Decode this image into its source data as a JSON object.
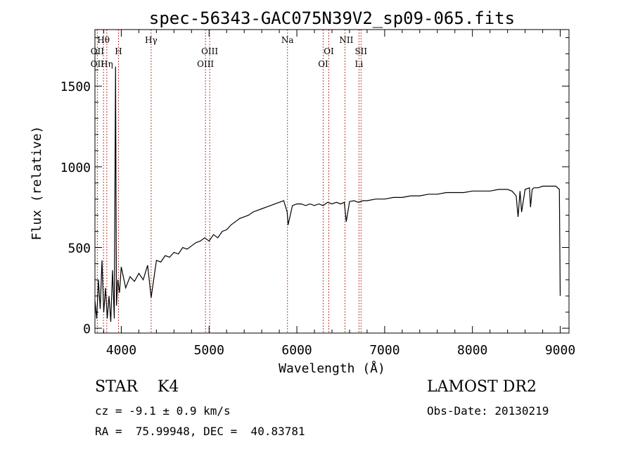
{
  "chart_data": {
    "type": "line",
    "title": "spec-56343-GAC075N39V2_sp09-065.fits",
    "xlabel": "Wavelength (Å)",
    "ylabel": "Flux (relative)",
    "xlim": [
      3700,
      9100
    ],
    "ylim": [
      -30,
      1850
    ],
    "xticks": [
      4000,
      5000,
      6000,
      7000,
      8000,
      9000
    ],
    "yticks": [
      0,
      500,
      1000,
      1500
    ],
    "grid": false,
    "series": [
      {
        "x": [
          3700,
          3720,
          3740,
          3760,
          3780,
          3800,
          3820,
          3840,
          3860,
          3880,
          3900,
          3920,
          3935,
          3945,
          3960,
          3980,
          4000,
          4050,
          4100,
          4150,
          4200,
          4250,
          4300,
          4340,
          4400,
          4450,
          4500,
          4550,
          4600,
          4650,
          4700,
          4750,
          4800,
          4850,
          4900,
          4950,
          5000,
          5050,
          5100,
          5150,
          5200,
          5250,
          5300,
          5350,
          5400,
          5450,
          5500,
          5550,
          5600,
          5650,
          5700,
          5750,
          5800,
          5850,
          5890,
          5900,
          5950,
          6000,
          6050,
          6100,
          6150,
          6200,
          6250,
          6300,
          6350,
          6400,
          6450,
          6500,
          6540,
          6563,
          6600,
          6650,
          6700,
          6750,
          6800,
          6900,
          7000,
          7100,
          7200,
          7300,
          7400,
          7500,
          7600,
          7700,
          7800,
          7900,
          8000,
          8100,
          8200,
          8300,
          8400,
          8450,
          8498,
          8520,
          8542,
          8560,
          8600,
          8650,
          8662,
          8680,
          8700,
          8750,
          8800,
          8850,
          8900,
          8950,
          8990,
          9000
        ],
        "values": [
          170,
          60,
          300,
          120,
          420,
          100,
          250,
          60,
          200,
          40,
          360,
          60,
          1620,
          140,
          300,
          220,
          380,
          250,
          320,
          290,
          340,
          300,
          390,
          190,
          420,
          410,
          450,
          440,
          470,
          460,
          500,
          490,
          510,
          530,
          540,
          560,
          540,
          580,
          560,
          600,
          610,
          640,
          660,
          680,
          690,
          700,
          720,
          730,
          740,
          750,
          760,
          770,
          780,
          790,
          720,
          640,
          760,
          770,
          770,
          760,
          770,
          760,
          770,
          760,
          780,
          770,
          780,
          770,
          780,
          660,
          785,
          790,
          780,
          790,
          790,
          800,
          800,
          810,
          810,
          820,
          820,
          830,
          830,
          840,
          840,
          840,
          850,
          850,
          850,
          860,
          860,
          850,
          820,
          690,
          850,
          720,
          860,
          870,
          750,
          860,
          870,
          870,
          880,
          880,
          880,
          880,
          860,
          200
        ]
      }
    ],
    "annotations": [
      {
        "label": "Hθ",
        "x": 3797,
        "row": 1
      },
      {
        "label": "OII",
        "x": 3727,
        "row": 2
      },
      {
        "label": "H",
        "x": 3968,
        "row": 2
      },
      {
        "label": "OII",
        "x": 3727,
        "row": 3
      },
      {
        "label": "Hη",
        "x": 3835,
        "row": 3
      },
      {
        "label": "Hγ",
        "x": 4340,
        "row": 1
      },
      {
        "label": "OIII",
        "x": 5007,
        "row": 2
      },
      {
        "label": "OIII",
        "x": 4959,
        "row": 3
      },
      {
        "label": "Na",
        "x": 5893,
        "row": 1
      },
      {
        "label": "OI",
        "x": 6364,
        "row": 2
      },
      {
        "label": "OI",
        "x": 6300,
        "row": 3
      },
      {
        "label": "NII",
        "x": 6563,
        "row": 1
      },
      {
        "label": "SII",
        "x": 6731,
        "row": 2
      },
      {
        "label": "Li",
        "x": 6708,
        "row": 3
      }
    ],
    "line_markers": [
      3727,
      3797,
      3835,
      3968,
      4340,
      4959,
      5007,
      5893,
      6300,
      6364,
      6548,
      6708,
      6731
    ]
  },
  "info": {
    "class_line": "STAR    K4",
    "cz_line": "cz = -9.1 ± 0.9 km/s",
    "radec_line": "RA =  75.99948, DEC =  40.83781",
    "survey": "LAMOST DR2",
    "obs_date": "Obs-Date: 20130219"
  }
}
